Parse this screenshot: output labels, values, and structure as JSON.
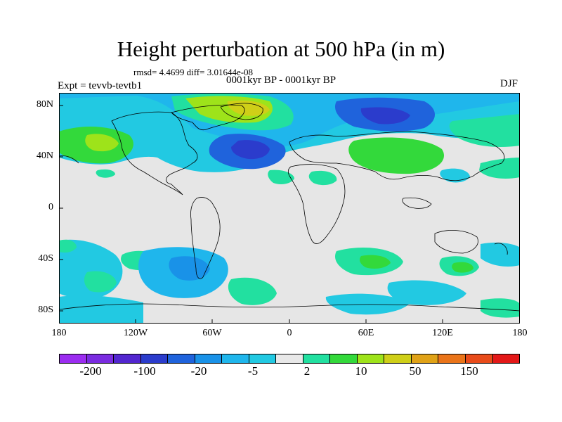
{
  "title": "Height perturbation at 500 hPa (in m)",
  "stats": "rmsd= 4.4699 diff= 3.01644e-08",
  "period": "0001kyr BP - 0001kyr BP",
  "expt": "Expt = tevvb-tevtb1",
  "season": "DJF",
  "map": {
    "x_ticks": [
      "180",
      "120W",
      "60W",
      "0",
      "60E",
      "120E",
      "180"
    ],
    "y_ticks": [
      "80N",
      "40N",
      "0",
      "40S",
      "80S"
    ],
    "background_color": "#e6e6e6"
  },
  "colorbar": {
    "colors": [
      "#9b2cf0",
      "#7a2be0",
      "#5226cf",
      "#2b3ccc",
      "#1f63dc",
      "#1992e8",
      "#1fb6ec",
      "#22c9e2",
      "#e8e8e8",
      "#22e0a0",
      "#33d93b",
      "#9ee31a",
      "#cfcf18",
      "#e0a217",
      "#ea7419",
      "#e84b1a",
      "#e31818"
    ],
    "labels": [
      "-200",
      "-100",
      "-20",
      "-5",
      "2",
      "10",
      "50",
      "150"
    ]
  }
}
